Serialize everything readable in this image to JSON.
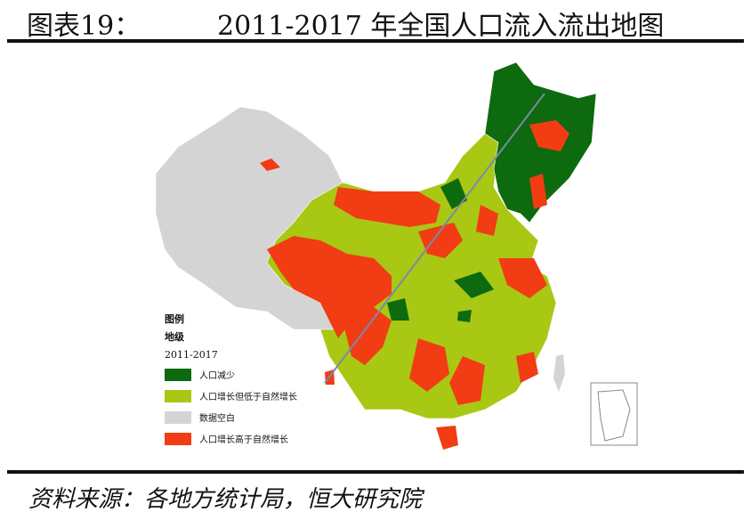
{
  "header": {
    "label": "图表19：",
    "title": "2011-2017 年全国人口流入流出地图"
  },
  "legend": {
    "title": "图例",
    "level": "地级",
    "period": "2011-2017",
    "items": [
      {
        "label": "人口减少",
        "color": "#0e6a0e"
      },
      {
        "label": "人口增长但低于自然增长",
        "color": "#a8c814"
      },
      {
        "label": "数据空白",
        "color": "#d4d4d4"
      },
      {
        "label": "人口增长高于自然增长",
        "color": "#f23c14"
      }
    ]
  },
  "source": "资料来源：各地方统计局，恒大研究院"
}
